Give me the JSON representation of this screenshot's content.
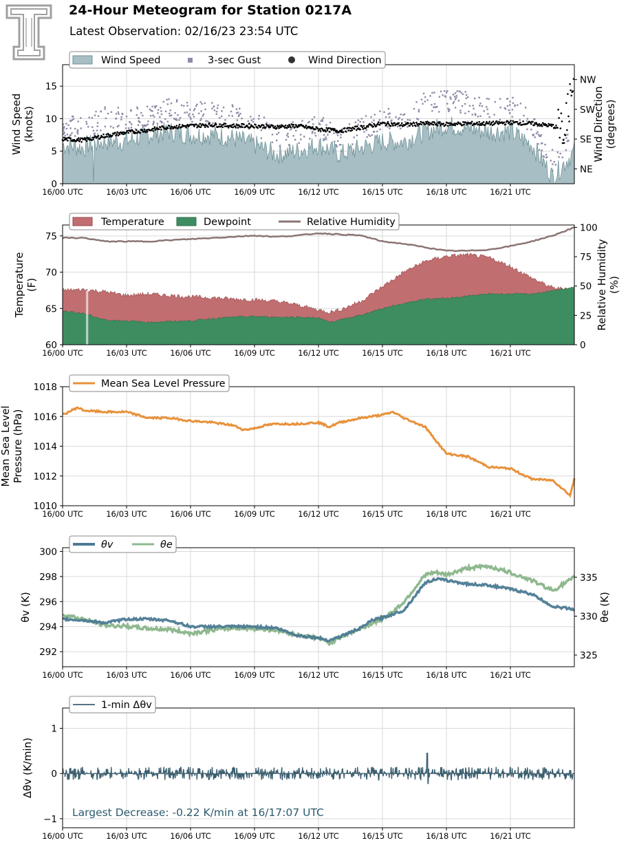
{
  "header": {
    "title": "24-Hour Meteogram for Station 0217A",
    "subtitle": "Latest Observation: 02/16/23 23:54 UTC"
  },
  "logo": {
    "icon": "texas-tech-double-t-logo",
    "color": "#a0a0a0"
  },
  "colors": {
    "wind_speed": "#a7bfc4",
    "wind_speed_line": "#6f9197",
    "gust": "#8f8aa8",
    "direction": "#000000",
    "temperature": "#c06e70",
    "dewpoint": "#3e8d60",
    "rh": "#8b7574",
    "mslp": "#e8913a",
    "theta_v": "#4c7a93",
    "theta_e": "#8fb88f",
    "dtheta": "#3c5f6f"
  },
  "chart_data": [
    {
      "type": "area",
      "name": "wind",
      "x_ticks": [
        "16/00 UTC",
        "16/03 UTC",
        "16/06 UTC",
        "16/09 UTC",
        "16/12 UTC",
        "16/15 UTC",
        "16/18 UTC",
        "16/21 UTC"
      ],
      "x_hours": [
        0,
        3,
        6,
        9,
        12,
        15,
        18,
        21
      ],
      "xlim": [
        0,
        24
      ],
      "ylabel": "Wind Speed\n(knots)",
      "ylim": [
        0,
        18.3
      ],
      "y_ticks": [
        0,
        5,
        10,
        15
      ],
      "y2label": "Wind Direction\n(degrees)",
      "y2_ticks": [
        "NE",
        "SE",
        "SW",
        "NW"
      ],
      "y2_tick_values": [
        45,
        135,
        225,
        315
      ],
      "y2lim": [
        0,
        360
      ],
      "legend": [
        "Wind Speed",
        "3-sec Gust",
        "Wind Direction"
      ],
      "grid": true,
      "series": [
        {
          "name": "Wind Speed",
          "x": [
            0,
            1,
            1.2,
            2,
            3,
            4,
            5,
            6,
            7,
            8,
            9,
            10,
            11,
            12,
            13,
            14,
            15,
            16,
            17,
            18,
            19,
            20,
            21,
            22,
            22.5,
            23,
            23.5,
            24
          ],
          "values": [
            6,
            5.5,
            6,
            6.5,
            6.5,
            7.5,
            8,
            7.5,
            7.5,
            7,
            6,
            4.5,
            5,
            6,
            4.5,
            5.5,
            6.5,
            6.5,
            8,
            9,
            8.5,
            8,
            8,
            6,
            3.5,
            1,
            3,
            5
          ]
        },
        {
          "name": "3-sec Gust",
          "x": [
            0,
            1,
            2,
            3,
            4,
            5,
            6,
            7,
            8,
            9,
            10,
            11,
            12,
            13,
            14,
            15,
            16,
            17,
            18,
            19,
            20,
            21,
            22,
            22.5,
            23,
            23.5,
            24
          ],
          "values": [
            8.5,
            8,
            10,
            9.5,
            10,
            11,
            10.5,
            10.5,
            10,
            9,
            7,
            7.5,
            8.5,
            6.5,
            8,
            9.5,
            9.5,
            12,
            12.5,
            12,
            11,
            11.5,
            9,
            5.5,
            3,
            5,
            8
          ]
        },
        {
          "name": "Wind Direction",
          "x": [
            0,
            1,
            2,
            3,
            4,
            5,
            6,
            7,
            8,
            9,
            10,
            11,
            12,
            13,
            14,
            15,
            16,
            17,
            18,
            19,
            20,
            21,
            22,
            23,
            23.5,
            24
          ],
          "values": [
            135,
            132,
            145,
            155,
            162,
            172,
            175,
            178,
            175,
            175,
            172,
            175,
            165,
            160,
            170,
            182,
            178,
            182,
            180,
            182,
            182,
            185,
            182,
            175,
            160,
            310
          ]
        }
      ]
    },
    {
      "type": "area",
      "name": "temperature",
      "x_ticks": [
        "16/00 UTC",
        "16/03 UTC",
        "16/06 UTC",
        "16/09 UTC",
        "16/12 UTC",
        "16/15 UTC",
        "16/18 UTC",
        "16/21 UTC"
      ],
      "xlim": [
        0,
        24
      ],
      "ylabel": "Temperature\n(F)",
      "ylim": [
        60,
        76.5
      ],
      "y_ticks": [
        60,
        65,
        70,
        75
      ],
      "y2label": "Relative Humidity\n(%)",
      "y2lim": [
        0,
        102
      ],
      "y2_ticks": [
        0,
        25,
        50,
        75,
        100
      ],
      "legend": [
        "Temperature",
        "Dewpoint",
        "Relative Humidity"
      ],
      "grid": true,
      "series": [
        {
          "name": "Temperature",
          "x": [
            0,
            1,
            2,
            3,
            4,
            5,
            6,
            7,
            8,
            9,
            10,
            11,
            12,
            12.5,
            13,
            14,
            15,
            16,
            17,
            18,
            19,
            20,
            21,
            22,
            23,
            24
          ],
          "values": [
            67.5,
            67.6,
            67.3,
            66.8,
            67,
            66.8,
            66.6,
            66.5,
            66.3,
            66.2,
            66,
            65.5,
            64.8,
            64.5,
            64.8,
            66,
            68,
            70,
            71.5,
            72.2,
            72.4,
            72,
            70.8,
            69.2,
            67.8,
            67.7
          ]
        },
        {
          "name": "Dewpoint",
          "x": [
            0,
            1,
            2,
            3,
            4,
            5,
            6,
            7,
            8,
            9,
            10,
            11,
            12,
            12.5,
            13,
            14,
            15,
            16,
            17,
            18,
            19,
            20,
            21,
            22,
            23,
            24
          ],
          "values": [
            64.7,
            64.3,
            63.4,
            63.3,
            63.1,
            63.2,
            63.3,
            63.6,
            63.8,
            63.9,
            63.8,
            63.8,
            63.7,
            63.1,
            63.4,
            64.1,
            65,
            65.7,
            66.3,
            66.4,
            66.7,
            67,
            67,
            67,
            67.4,
            68
          ]
        },
        {
          "name": "Relative Humidity",
          "x": [
            0,
            1,
            2,
            3,
            4,
            5,
            6,
            7,
            8,
            9,
            10,
            11,
            12,
            13,
            14,
            15,
            16,
            17,
            18,
            19,
            20,
            21,
            22,
            23,
            24
          ],
          "values": [
            91,
            91,
            88,
            88,
            88,
            89,
            90,
            91,
            92,
            93,
            92,
            93,
            95,
            94,
            93,
            88,
            86,
            83,
            80,
            80,
            81,
            84,
            88,
            93,
            100
          ]
        }
      ]
    },
    {
      "type": "line",
      "name": "pressure",
      "x_ticks": [
        "16/00 UTC",
        "16/03 UTC",
        "16/06 UTC",
        "16/09 UTC",
        "16/12 UTC",
        "16/15 UTC",
        "16/18 UTC",
        "16/21 UTC"
      ],
      "xlim": [
        0,
        24
      ],
      "ylabel": "Mean Sea Level\nPressure (hPa)",
      "ylim": [
        1010,
        1018
      ],
      "y_ticks": [
        1010,
        1012,
        1014,
        1016,
        1018
      ],
      "legend": [
        "Mean Sea Level Pressure"
      ],
      "grid": true,
      "series": [
        {
          "name": "Mean Sea Level Pressure",
          "x": [
            0,
            0.7,
            1,
            2,
            3,
            4,
            5,
            6,
            7,
            8,
            8.5,
            9,
            9.5,
            10,
            11,
            12,
            12.5,
            13,
            14,
            15,
            15.5,
            16,
            17,
            17.5,
            18,
            19,
            20,
            21,
            22,
            23,
            23.8,
            24
          ],
          "values": [
            1016.1,
            1016.6,
            1016.4,
            1016.3,
            1016.3,
            1015.9,
            1015.9,
            1015.7,
            1015.6,
            1015.4,
            1015.1,
            1015.2,
            1015.4,
            1015.5,
            1015.5,
            1015.6,
            1015.3,
            1015.6,
            1015.9,
            1016.1,
            1016.3,
            1015.9,
            1015.3,
            1014.4,
            1013.5,
            1013.3,
            1012.6,
            1012.5,
            1011.8,
            1011.7,
            1010.7,
            1011.8
          ]
        }
      ]
    },
    {
      "type": "line",
      "name": "theta",
      "x_ticks": [
        "16/00 UTC",
        "16/03 UTC",
        "16/06 UTC",
        "16/09 UTC",
        "16/12 UTC",
        "16/15 UTC",
        "16/18 UTC",
        "16/21 UTC"
      ],
      "xlim": [
        0,
        24
      ],
      "ylabel": "θv (K)",
      "ylim": [
        290.8,
        300.3
      ],
      "y_ticks": [
        292,
        294,
        296,
        298,
        300
      ],
      "y2label": "θe (K)",
      "y2lim": [
        323.5,
        338.8
      ],
      "y2_ticks": [
        325,
        330,
        335
      ],
      "legend": [
        "θv",
        "θe"
      ],
      "grid": true,
      "series": [
        {
          "name": "θv",
          "axis": "left",
          "x": [
            0,
            1,
            2,
            3,
            4,
            5,
            6,
            7,
            8,
            9,
            10,
            11,
            12,
            12.5,
            13,
            14,
            14.5,
            15,
            16,
            17,
            17.5,
            18,
            19,
            20,
            21,
            22,
            23,
            24
          ],
          "values": [
            294.6,
            294.5,
            294.3,
            294.6,
            294.6,
            294.5,
            294,
            294,
            294,
            294,
            293.9,
            293.3,
            293.1,
            292.9,
            293.2,
            293.9,
            294.5,
            294.7,
            295.3,
            297.5,
            297.8,
            297.7,
            297.4,
            297.3,
            297,
            296.6,
            295.6,
            295.4
          ]
        },
        {
          "name": "θe",
          "axis": "right",
          "x": [
            0,
            1,
            2,
            3,
            4,
            5,
            6,
            7,
            8,
            9,
            10,
            11,
            12,
            12.5,
            13,
            14,
            15,
            15.5,
            16,
            17,
            17.5,
            18,
            19,
            20,
            21,
            22,
            23,
            24
          ],
          "values": [
            330.2,
            329.6,
            328.8,
            328.7,
            328.4,
            328.3,
            327.8,
            328.2,
            328.5,
            328.4,
            328.2,
            327.6,
            327.2,
            326.5,
            327.3,
            328.4,
            329.7,
            330.6,
            331.8,
            335.3,
            335.6,
            335.3,
            336.2,
            336.4,
            335.6,
            334.6,
            333.3,
            335
          ]
        }
      ]
    },
    {
      "type": "line",
      "name": "dtheta",
      "x_ticks": [
        "16/00 UTC",
        "16/03 UTC",
        "16/06 UTC",
        "16/09 UTC",
        "16/12 UTC",
        "16/15 UTC",
        "16/18 UTC",
        "16/21 UTC"
      ],
      "xlim": [
        0,
        24
      ],
      "ylabel": "Δθv (K/min)",
      "ylim": [
        -1.2,
        1.45
      ],
      "y_ticks": [
        -1,
        0,
        1
      ],
      "legend": [
        "1-min Δθv"
      ],
      "grid": true,
      "series": [
        {
          "name": "1-min Δθv",
          "x": [
            0,
            17.1,
            17.15,
            24
          ],
          "values": [
            0,
            0.45,
            -0.22,
            0
          ]
        }
      ],
      "annotation": "Largest Decrease: -0.22 K/min at 16/17:07 UTC"
    }
  ]
}
